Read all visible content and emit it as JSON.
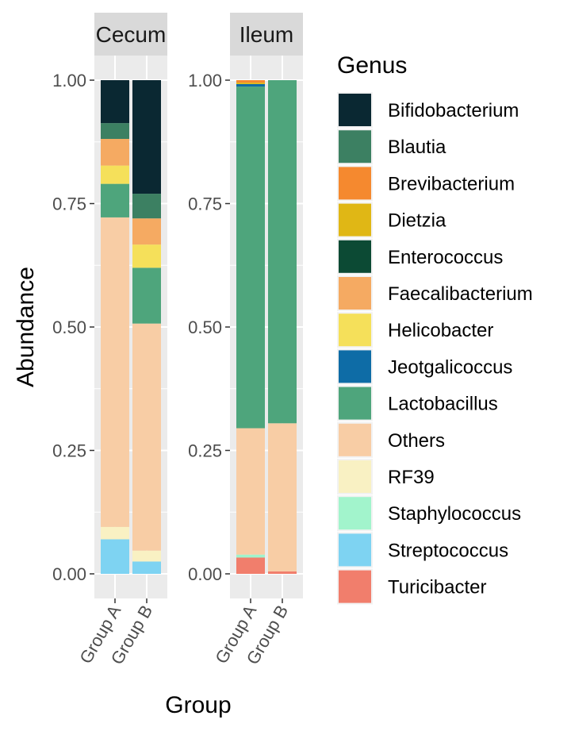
{
  "chart_data": {
    "type": "bar",
    "stacked": true,
    "facet_labels": [
      "Cecum",
      "Ileum"
    ],
    "xlabel": "Group",
    "ylabel": "Abundance",
    "ylim": [
      0,
      1
    ],
    "yticks": [
      "0.00",
      "0.25",
      "0.50",
      "0.75",
      "1.00"
    ],
    "legend_title": "Genus",
    "legend_position": "right",
    "grid": true,
    "genera": [
      {
        "name": "Bifidobacterium",
        "color": "#0a2832"
      },
      {
        "name": "Blautia",
        "color": "#3c8062"
      },
      {
        "name": "Brevibacterium",
        "color": "#f5892f"
      },
      {
        "name": "Dietzia",
        "color": "#e0b715"
      },
      {
        "name": "Enterococcus",
        "color": "#0c4a34"
      },
      {
        "name": "Faecalibacterium",
        "color": "#f5aa62"
      },
      {
        "name": "Helicobacter",
        "color": "#f5e05a"
      },
      {
        "name": "Jeotgalicoccus",
        "color": "#0e6ca6"
      },
      {
        "name": "Lactobacillus",
        "color": "#4ea57c"
      },
      {
        "name": "Others",
        "color": "#f8cda5"
      },
      {
        "name": "RF39",
        "color": "#f9f1c3"
      },
      {
        "name": "Staphylococcus",
        "color": "#a2f4cc"
      },
      {
        "name": "Streptococcus",
        "color": "#7ed3f2"
      },
      {
        "name": "Turicibacter",
        "color": "#f17e6c"
      }
    ],
    "panels": [
      {
        "facet": "Cecum",
        "groups": [
          {
            "group": "Group A",
            "values": {
              "Turicibacter": 0.0,
              "Streptococcus": 0.07,
              "Staphylococcus": 0.0,
              "RF39": 0.025,
              "Others": 0.627,
              "Lactobacillus": 0.068,
              "Jeotgalicoccus": 0.0,
              "Helicobacter": 0.037,
              "Faecalibacterium": 0.054,
              "Enterococcus": 0.0,
              "Dietzia": 0.0,
              "Brevibacterium": 0.0,
              "Blautia": 0.032,
              "Bifidobacterium": 0.087
            }
          },
          {
            "group": "Group B",
            "values": {
              "Turicibacter": 0.0,
              "Streptococcus": 0.025,
              "Staphylococcus": 0.0,
              "RF39": 0.022,
              "Others": 0.46,
              "Lactobacillus": 0.113,
              "Jeotgalicoccus": 0.0,
              "Helicobacter": 0.047,
              "Faecalibacterium": 0.053,
              "Enterococcus": 0.0,
              "Dietzia": 0.0,
              "Brevibacterium": 0.0,
              "Blautia": 0.05,
              "Bifidobacterium": 0.23
            }
          }
        ]
      },
      {
        "facet": "Ileum",
        "groups": [
          {
            "group": "Group A",
            "values": {
              "Turicibacter": 0.033,
              "Streptococcus": 0.0,
              "Staphylococcus": 0.006,
              "RF39": 0.0,
              "Others": 0.256,
              "Lactobacillus": 0.692,
              "Jeotgalicoccus": 0.005,
              "Helicobacter": 0.0,
              "Faecalibacterium": 0.0,
              "Enterococcus": 0.0,
              "Dietzia": 0.003,
              "Brevibacterium": 0.005,
              "Blautia": 0.0,
              "Bifidobacterium": 0.0
            }
          },
          {
            "group": "Group B",
            "values": {
              "Turicibacter": 0.005,
              "Streptococcus": 0.0,
              "Staphylococcus": 0.0,
              "RF39": 0.0,
              "Others": 0.3,
              "Lactobacillus": 0.695,
              "Jeotgalicoccus": 0.0,
              "Helicobacter": 0.0,
              "Faecalibacterium": 0.0,
              "Enterococcus": 0.0,
              "Dietzia": 0.0,
              "Brevibacterium": 0.0,
              "Blautia": 0.0,
              "Bifidobacterium": 0.0
            }
          }
        ]
      }
    ]
  }
}
